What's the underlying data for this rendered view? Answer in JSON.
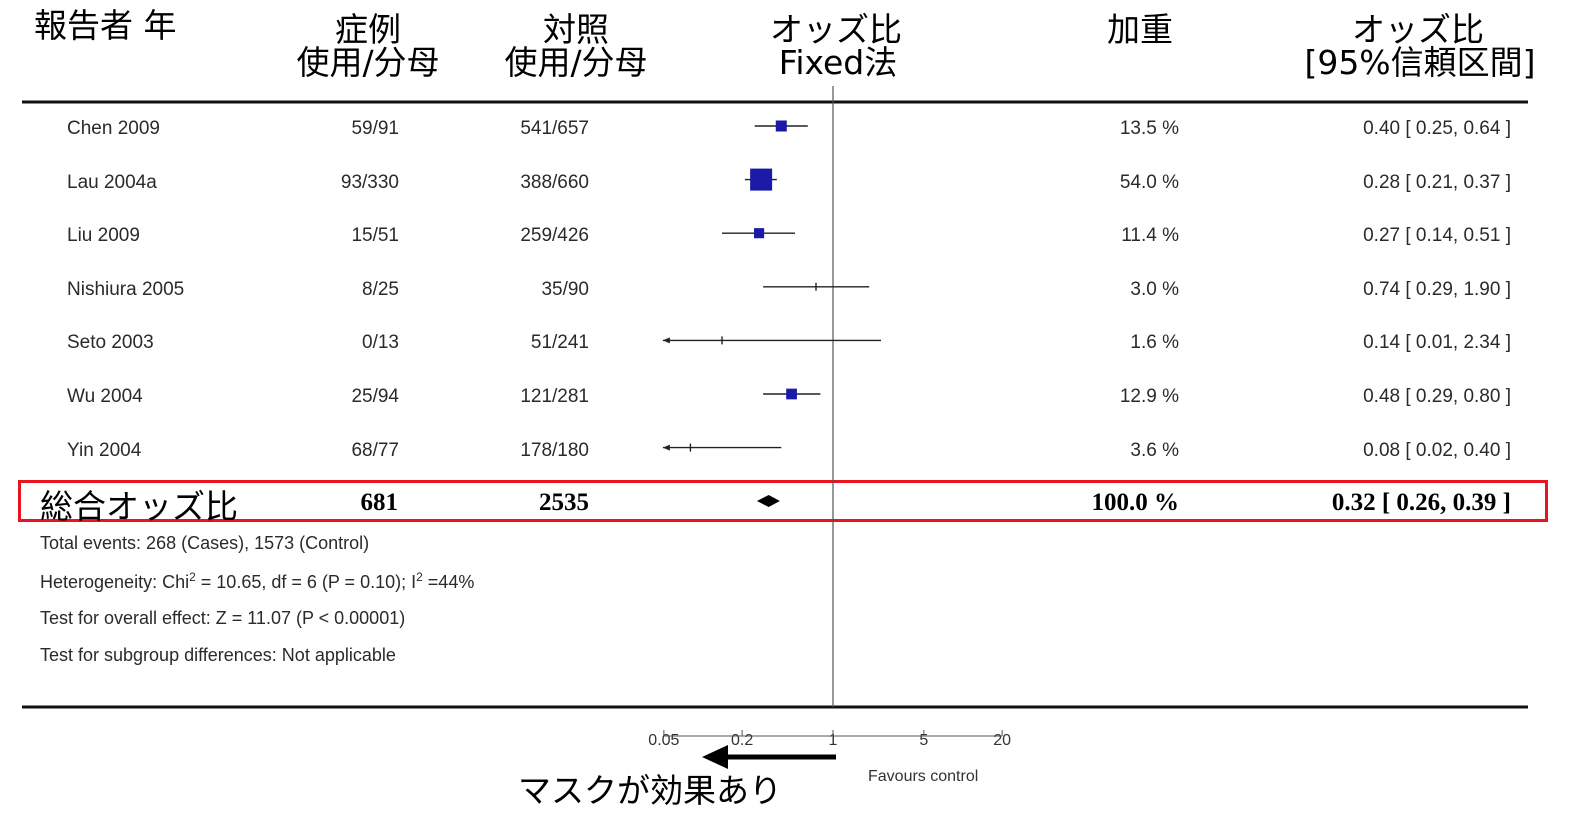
{
  "header": {
    "study": "報告者 年",
    "cases_line1": "症例",
    "cases_line2": "使用/分母",
    "control_line1": "対照",
    "control_line2": "使用/分母",
    "or_line1": "オッズ比",
    "or_line2": "Fixed法",
    "weight": "加重",
    "ci_line1": "オッズ比",
    "ci_line2": "[95%信頼区間]"
  },
  "chart_data": {
    "type": "forest",
    "x_scale": "log",
    "xlim": [
      0.05,
      20
    ],
    "x_ticks": [
      "0.05",
      "0.2",
      "1",
      "5",
      "20"
    ],
    "reference_line": 1,
    "xlabel_right": "Favours control",
    "studies": [
      {
        "name": "Chen 2009",
        "cases": "59/91",
        "control": "541/657",
        "or": 0.4,
        "lo": 0.25,
        "hi": 0.64,
        "weight": 13.5,
        "weight_label": "13.5 %",
        "ci_label": "0.40 [ 0.25, 0.64 ]"
      },
      {
        "name": "Lau 2004a",
        "cases": "93/330",
        "control": "388/660",
        "or": 0.28,
        "lo": 0.21,
        "hi": 0.37,
        "weight": 54.0,
        "weight_label": "54.0 %",
        "ci_label": "0.28 [ 0.21, 0.37 ]"
      },
      {
        "name": "Liu 2009",
        "cases": "15/51",
        "control": "259/426",
        "or": 0.27,
        "lo": 0.14,
        "hi": 0.51,
        "weight": 11.4,
        "weight_label": "11.4 %",
        "ci_label": "0.27 [ 0.14, 0.51 ]"
      },
      {
        "name": "Nishiura 2005",
        "cases": "8/25",
        "control": "35/90",
        "or": 0.74,
        "lo": 0.29,
        "hi": 1.9,
        "weight": 3.0,
        "weight_label": "3.0 %",
        "ci_label": "0.74 [ 0.29, 1.90 ]"
      },
      {
        "name": "Seto 2003",
        "cases": "0/13",
        "control": "51/241",
        "or": 0.14,
        "lo": 0.01,
        "hi": 2.34,
        "weight": 1.6,
        "weight_label": "1.6 %",
        "ci_label": "0.14 [ 0.01, 2.34 ]"
      },
      {
        "name": "Wu 2004",
        "cases": "25/94",
        "control": "121/281",
        "or": 0.48,
        "lo": 0.29,
        "hi": 0.8,
        "weight": 12.9,
        "weight_label": "12.9 %",
        "ci_label": "0.48 [ 0.29, 0.80 ]"
      },
      {
        "name": "Yin 2004",
        "cases": "68/77",
        "control": "178/180",
        "or": 0.08,
        "lo": 0.02,
        "hi": 0.4,
        "weight": 3.6,
        "weight_label": "3.6 %",
        "ci_label": "0.08 [ 0.02, 0.40 ]"
      }
    ],
    "total": {
      "label": "総合オッズ比",
      "cases": "681",
      "control": "2535",
      "or": 0.32,
      "lo": 0.26,
      "hi": 0.39,
      "weight_label": "100.0 %",
      "ci_label": "0.32 [ 0.26, 0.39 ]"
    },
    "highlight_color": "#e8141e",
    "marker_color": "#1a1aa6"
  },
  "footer": {
    "total_events": "Total events: 268 (Cases), 1573 (Control)",
    "heterogeneity_pre": "Heterogeneity: Chi",
    "heterogeneity_sup1": "2",
    "heterogeneity_mid": " = 10.65, df = 6 (P = 0.10); I",
    "heterogeneity_sup2": "2",
    "heterogeneity_post": " =44%",
    "overall_effect": "Test for overall effect: Z = 11.07 (P < 0.00001)",
    "subgroup": "Test for subgroup differences: Not applicable"
  },
  "annotation": {
    "mask_effect": "マスクが効果あり"
  }
}
